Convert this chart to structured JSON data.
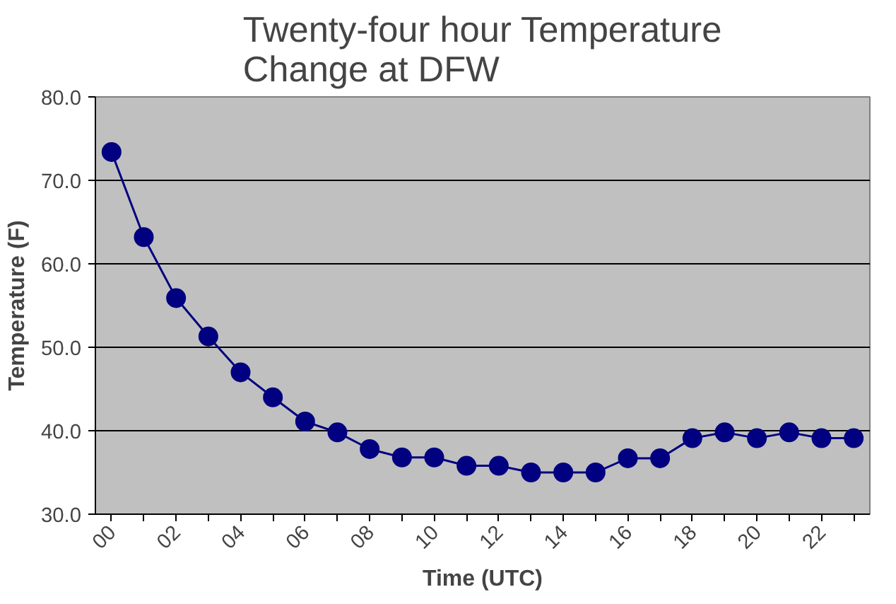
{
  "chart_data": {
    "type": "line",
    "title": "Twenty-four hour Temperature\nChange at DFW",
    "xlabel": "Time (UTC)",
    "ylabel": "Temperature (F)",
    "categories": [
      "00",
      null,
      "02",
      null,
      "04",
      null,
      "06",
      null,
      "08",
      null,
      "10",
      null,
      "12",
      null,
      "14",
      null,
      "16",
      null,
      "18",
      null,
      "20",
      null,
      "22",
      null
    ],
    "series": [
      {
        "color": "#000080",
        "values": [
          73.4,
          63.2,
          55.9,
          51.3,
          47.0,
          44.0,
          41.1,
          39.8,
          37.8,
          36.8,
          36.8,
          35.8,
          35.8,
          35.0,
          35.0,
          35.0,
          36.7,
          36.7,
          39.1,
          39.8,
          39.1,
          39.8,
          39.1,
          39.1
        ]
      }
    ],
    "ylim": [
      30,
      80
    ],
    "yticks": [
      {
        "value": 30,
        "label": "30.0"
      },
      {
        "value": 40,
        "label": "40.0"
      },
      {
        "value": 50,
        "label": "50.0"
      },
      {
        "value": 60,
        "label": "60.0"
      },
      {
        "value": 70,
        "label": "70.0"
      },
      {
        "value": 80,
        "label": "80.0"
      }
    ],
    "grid": "y",
    "marker": "circle",
    "line_style": "solid"
  }
}
